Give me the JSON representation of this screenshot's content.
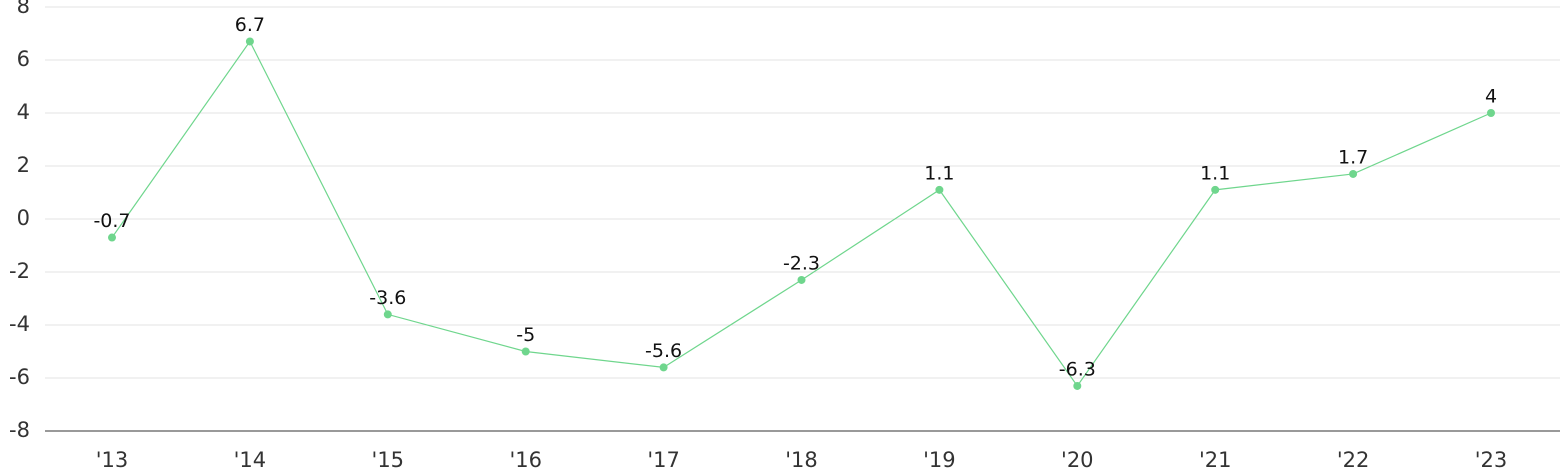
{
  "chart_data": {
    "type": "line",
    "categories": [
      "'13",
      "'14",
      "'15",
      "'16",
      "'17",
      "'18",
      "'19",
      "'20",
      "'21",
      "'22",
      "'23"
    ],
    "values": [
      -0.7,
      6.7,
      -3.6,
      -5,
      -5.6,
      -2.3,
      1.1,
      -6.3,
      1.1,
      1.7,
      4
    ],
    "color": "#6fd68d",
    "ylim": [
      -8,
      8
    ],
    "yticks": [
      -8,
      -6,
      -4,
      -2,
      0,
      2,
      4,
      6,
      8
    ],
    "grid": true
  }
}
